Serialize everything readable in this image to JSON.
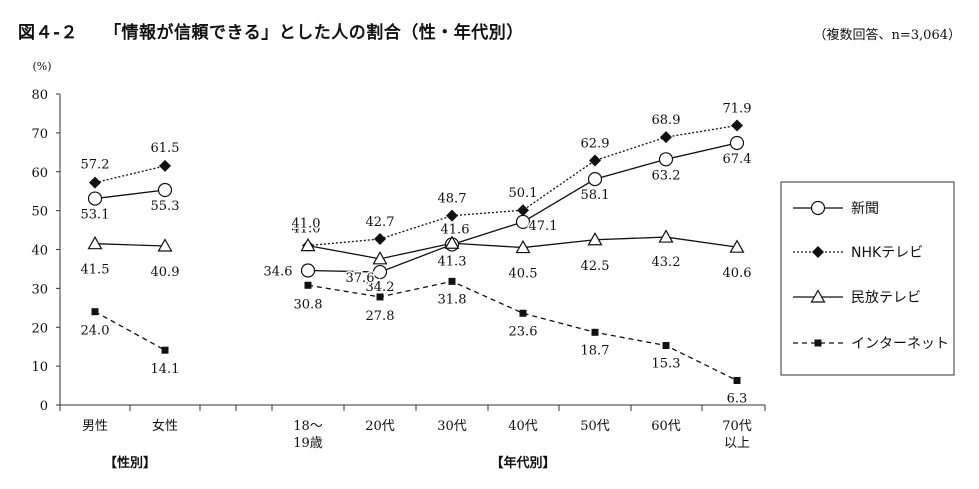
{
  "header": {
    "figure_number": "図４-２",
    "title": "「情報が信頼できる」とした人の割合（性・年代別）",
    "note": "（複数回答、n=3,064）"
  },
  "chart_data": {
    "type": "line",
    "yunit": "(%)",
    "ylim": [
      0,
      80
    ],
    "yticks": [
      0,
      10,
      20,
      30,
      40,
      50,
      60,
      70,
      80
    ],
    "grid": false,
    "legend_position": "right",
    "categories": [
      "男性",
      "女性",
      "18〜\n19歳",
      "20代",
      "30代",
      "40代",
      "50代",
      "60代",
      "70代\n以上"
    ],
    "groups": [
      {
        "label": "【性別】",
        "categories": [
          "男性",
          "女性"
        ]
      },
      {
        "label": "【年代別】",
        "categories": [
          "18〜\n19歳",
          "20代",
          "30代",
          "40代",
          "50代",
          "60代",
          "70代\n以上"
        ]
      }
    ],
    "series": [
      {
        "name": "新聞",
        "marker": "circle-open",
        "line": "solid",
        "values": [
          53.1,
          55.3,
          34.6,
          34.2,
          41.3,
          47.1,
          58.1,
          63.2,
          67.4
        ]
      },
      {
        "name": "NHKテレビ",
        "marker": "diamond-filled",
        "line": "dotted",
        "values": [
          57.2,
          61.5,
          41.0,
          42.7,
          48.7,
          50.1,
          62.9,
          68.9,
          71.9
        ]
      },
      {
        "name": "民放テレビ",
        "marker": "triangle-open",
        "line": "solid",
        "values": [
          41.5,
          40.9,
          41.0,
          37.6,
          41.6,
          40.5,
          42.5,
          43.2,
          40.6
        ]
      },
      {
        "name": "インターネット",
        "marker": "square-filled",
        "line": "dashed",
        "values": [
          24.0,
          14.1,
          30.8,
          27.8,
          31.8,
          23.6,
          18.7,
          15.3,
          6.3
        ]
      }
    ]
  }
}
